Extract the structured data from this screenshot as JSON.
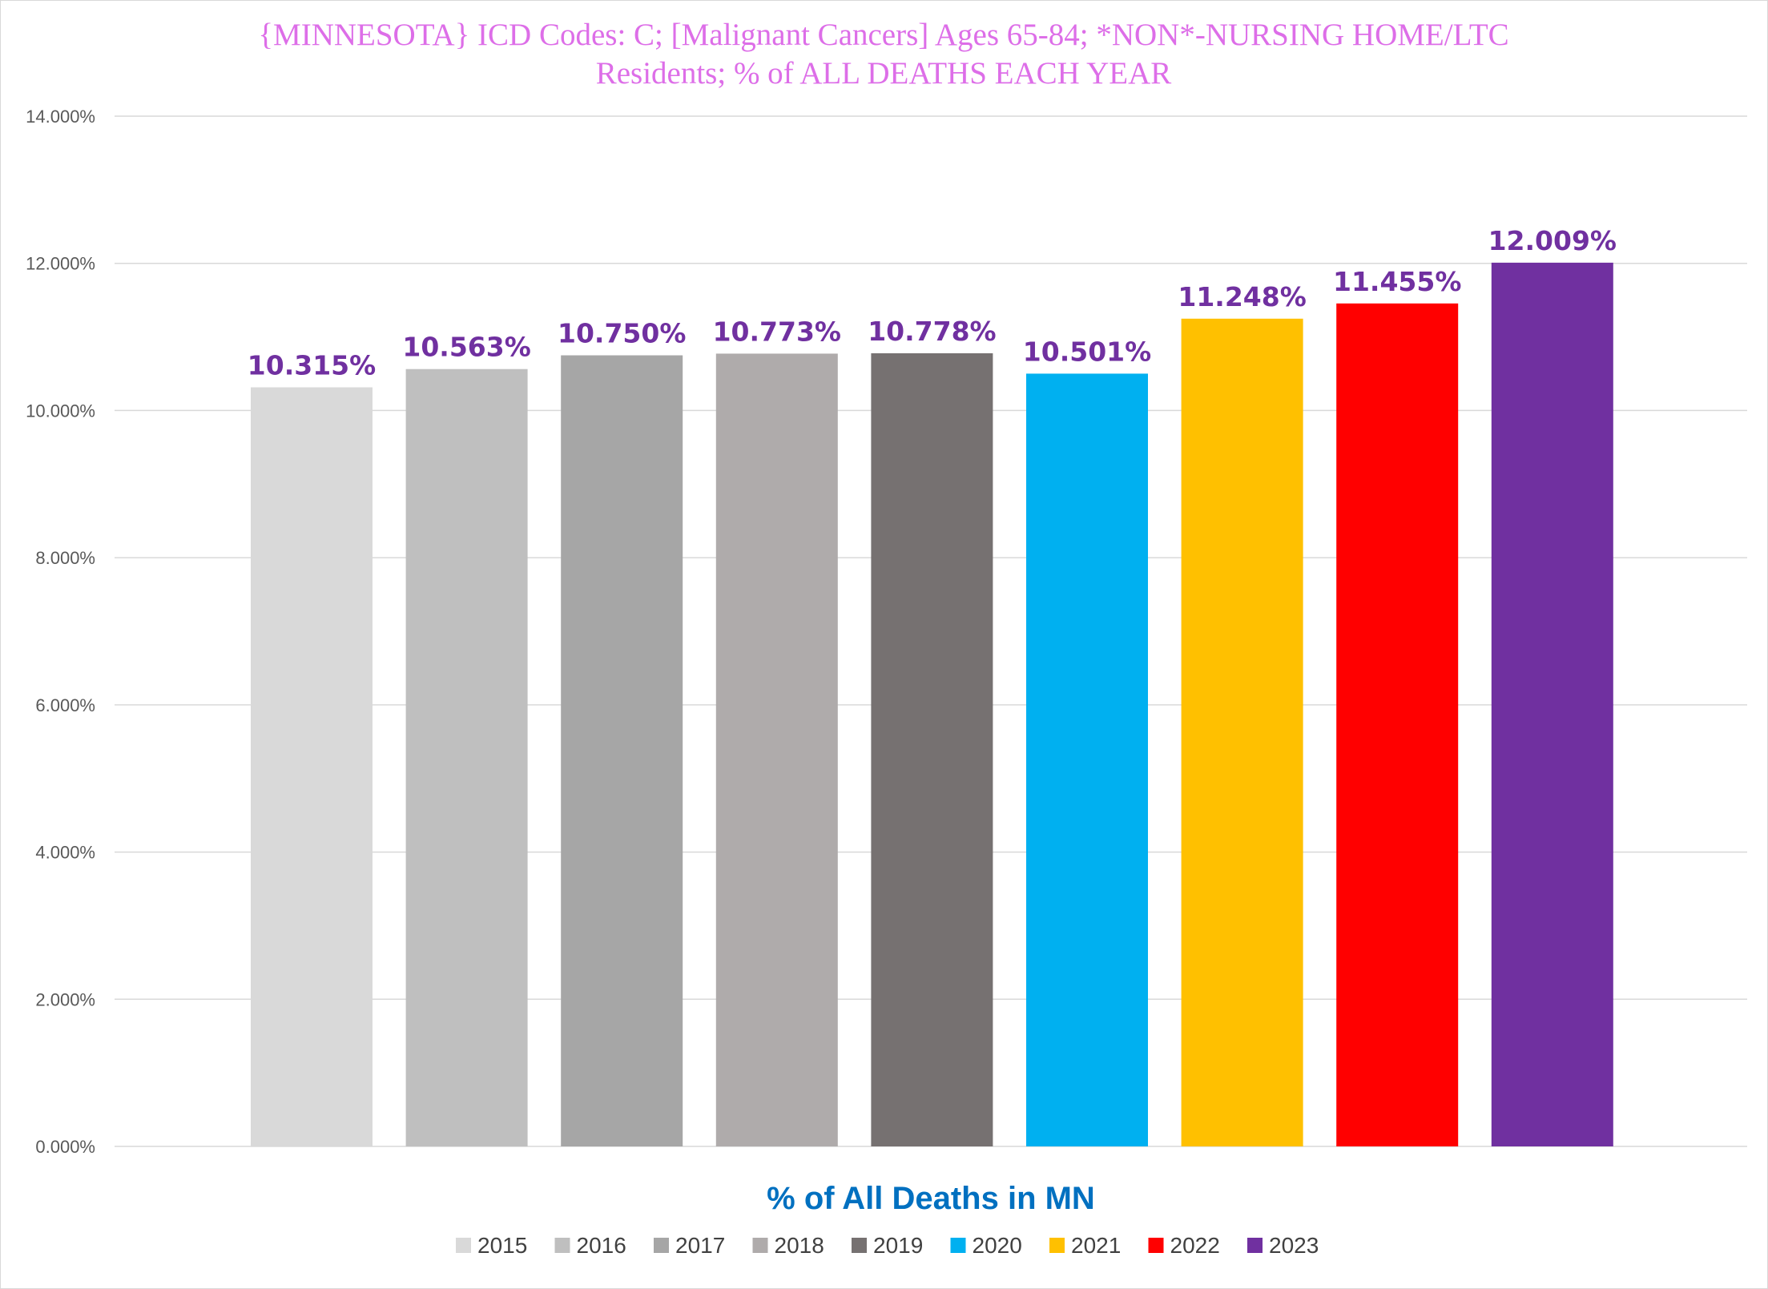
{
  "chart_data": {
    "type": "bar",
    "title_lines": [
      "{MINNESOTA}  ICD Codes: C;  [Malignant Cancers] Ages 65-84; *NON*-NURSING HOME/LTC",
      "Residents; % of ALL DEATHS EACH YEAR"
    ],
    "xlabel": "% of All Deaths in MN",
    "ylabel": "",
    "ylim": [
      0,
      14
    ],
    "ytick_step": 2,
    "ytick_labels": [
      "0.000%",
      "2.000%",
      "4.000%",
      "6.000%",
      "8.000%",
      "10.000%",
      "12.000%",
      "14.000%"
    ],
    "grid": true,
    "legend_position": "bottom",
    "categories": [
      "2015",
      "2016",
      "2017",
      "2018",
      "2019",
      "2020",
      "2021",
      "2022",
      "2023"
    ],
    "values": [
      10.315,
      10.563,
      10.75,
      10.773,
      10.778,
      10.501,
      11.248,
      11.455,
      12.009
    ],
    "data_labels": [
      "10.315%",
      "10.563%",
      "10.750%",
      "10.773%",
      "10.778%",
      "10.501%",
      "11.248%",
      "11.455%",
      "12.009%"
    ],
    "colors": [
      "#d9d9d9",
      "#bfbfbf",
      "#a6a6a6",
      "#afabab",
      "#767171",
      "#00b0f0",
      "#ffc000",
      "#ff0000",
      "#7030a0"
    ],
    "title_color": "#dd6ee8",
    "xlabel_color": "#0070c0",
    "data_label_color": "#7030a0",
    "grid_color": "#d9d9d9"
  }
}
